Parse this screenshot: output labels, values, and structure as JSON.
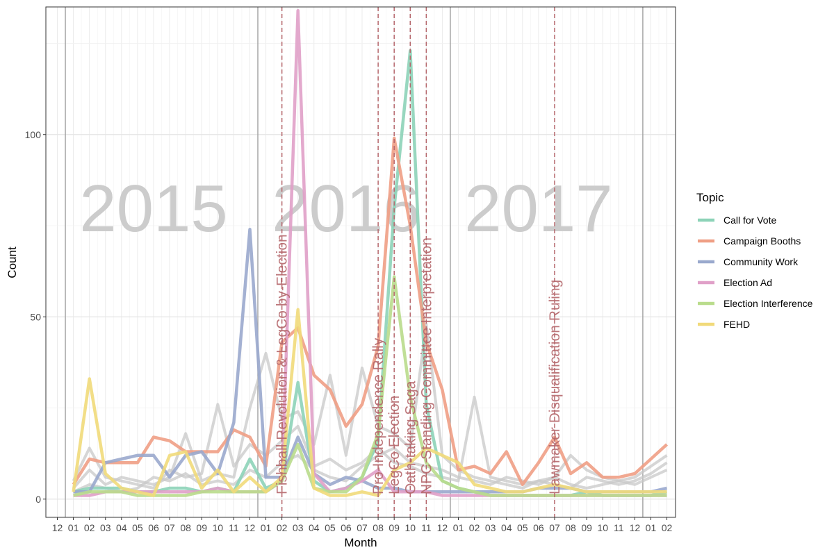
{
  "chart_data": {
    "type": "line",
    "xlabel": "Month",
    "ylabel": "Count",
    "ylim": [
      -5,
      135
    ],
    "y_ticks": [
      0,
      50,
      100
    ],
    "grid": true,
    "x_months": [
      "2014-12",
      "2015-01",
      "2015-02",
      "2015-03",
      "2015-04",
      "2015-05",
      "2015-06",
      "2015-07",
      "2015-08",
      "2015-09",
      "2015-10",
      "2015-11",
      "2015-12",
      "2016-01",
      "2016-02",
      "2016-03",
      "2016-04",
      "2016-05",
      "2016-06",
      "2016-07",
      "2016-08",
      "2016-09",
      "2016-10",
      "2016-11",
      "2016-12",
      "2017-01",
      "2017-02",
      "2017-03",
      "2017-04",
      "2017-05",
      "2017-06",
      "2017-07",
      "2017-08",
      "2017-09",
      "2017-10",
      "2017-11",
      "2017-12",
      "2018-01",
      "2018-02"
    ],
    "x_tick_labels": [
      "12",
      "01",
      "02",
      "03",
      "04",
      "05",
      "06",
      "07",
      "08",
      "09",
      "10",
      "11",
      "12",
      "01",
      "02",
      "03",
      "04",
      "05",
      "06",
      "07",
      "08",
      "09",
      "10",
      "11",
      "12",
      "01",
      "02",
      "03",
      "04",
      "05",
      "06",
      "07",
      "08",
      "09",
      "10",
      "11",
      "12",
      "01",
      "02"
    ],
    "year_dividers": [
      "2015-01",
      "2016-01",
      "2017-01",
      "2018-01"
    ],
    "year_labels": [
      {
        "text": "2015",
        "month": "2015-06"
      },
      {
        "text": "2016",
        "month": "2016-06"
      },
      {
        "text": "2017",
        "month": "2017-06"
      }
    ],
    "events": [
      {
        "month": "2016-02",
        "label": "Fishball Revolution & LegCo by-Election"
      },
      {
        "month": "2016-08",
        "label": "Pro-Independence Rally"
      },
      {
        "month": "2016-09",
        "label": "LegCo Election"
      },
      {
        "month": "2016-10",
        "label": "Oath-taking Saga"
      },
      {
        "month": "2016-11",
        "label": "NPC Standing Committee Interpretation"
      },
      {
        "month": "2017-07",
        "label": "Lawmaker Disqualification Ruling"
      }
    ],
    "legend": {
      "title": "Topic",
      "position": "right"
    },
    "series": [
      {
        "name": "Call for Vote",
        "color": "#8dd3b8",
        "start": "2015-01",
        "values": [
          2,
          3,
          3,
          3,
          2,
          2,
          3,
          3,
          2,
          3,
          2,
          11,
          3,
          5,
          32,
          5,
          2,
          3,
          6,
          16,
          80,
          123,
          26,
          5,
          3,
          2,
          1,
          1,
          1,
          1,
          1,
          1,
          2,
          1,
          1,
          1,
          1,
          2
        ]
      },
      {
        "name": "Campaign Booths",
        "color": "#ef9f85",
        "start": "2015-01",
        "values": [
          4,
          11,
          10,
          10,
          10,
          17,
          16,
          13,
          13,
          13,
          19,
          17,
          9,
          43,
          47,
          34,
          30,
          20,
          26,
          42,
          99,
          75,
          43,
          30,
          8,
          9,
          7,
          13,
          4,
          10,
          17,
          7,
          10,
          6,
          6,
          7,
          11,
          15
        ]
      },
      {
        "name": "Community Work",
        "color": "#9aa9cd",
        "start": "2015-01",
        "values": [
          2,
          2,
          10,
          11,
          12,
          12,
          6,
          12,
          13,
          7,
          21,
          74,
          6,
          6,
          17,
          7,
          4,
          6,
          5,
          3,
          3,
          2,
          2,
          2,
          2,
          2,
          2,
          2,
          2,
          3,
          3,
          3,
          2,
          2,
          2,
          2,
          2,
          3
        ]
      },
      {
        "name": "Election Ad",
        "color": "#e0a0c8",
        "start": "2015-01",
        "values": [
          1,
          1,
          2,
          2,
          2,
          2,
          2,
          2,
          2,
          3,
          2,
          2,
          2,
          5,
          134,
          7,
          2,
          3,
          5,
          8,
          2,
          2,
          2,
          1,
          1,
          1,
          1,
          1,
          1,
          1,
          1,
          1,
          1,
          1,
          1,
          1,
          1,
          1
        ]
      },
      {
        "name": "Election Interference",
        "color": "#b9dc8c",
        "start": "2015-01",
        "values": [
          1,
          2,
          2,
          2,
          1,
          1,
          1,
          1,
          2,
          2,
          2,
          2,
          2,
          5,
          15,
          3,
          2,
          2,
          6,
          18,
          61,
          28,
          10,
          5,
          3,
          2,
          1,
          1,
          1,
          1,
          1,
          1,
          1,
          1,
          1,
          1,
          1,
          1
        ]
      },
      {
        "name": "FEHD",
        "color": "#f1da7a",
        "start": "2015-01",
        "values": [
          2,
          33,
          7,
          3,
          2,
          1,
          12,
          13,
          3,
          8,
          2,
          6,
          2,
          6,
          52,
          3,
          1,
          1,
          2,
          1,
          8,
          10,
          14,
          12,
          10,
          4,
          3,
          2,
          2,
          3,
          4,
          3,
          2,
          2,
          2,
          2,
          2,
          2
        ]
      }
    ],
    "background_series": {
      "color": "#c8c8c8",
      "start": "2015-01",
      "values": [
        [
          5,
          14,
          6,
          5,
          4,
          3,
          8,
          6,
          7,
          26,
          9,
          15,
          12,
          16,
          20,
          9,
          11,
          8,
          10,
          14,
          10,
          9,
          7,
          6,
          5,
          28,
          6,
          5,
          4,
          5,
          6,
          4,
          3,
          4,
          5,
          4,
          6,
          8
        ],
        [
          3,
          8,
          4,
          6,
          5,
          4,
          6,
          18,
          5,
          7,
          6,
          25,
          40,
          22,
          24,
          15,
          34,
          12,
          36,
          20,
          18,
          14,
          48,
          12,
          8,
          6,
          5,
          4,
          3,
          5,
          4,
          3,
          6,
          5,
          4,
          5,
          7,
          10
        ],
        [
          2,
          4,
          3,
          2,
          3,
          6,
          5,
          7,
          4,
          5,
          4,
          8,
          6,
          10,
          12,
          8,
          6,
          5,
          9,
          12,
          14,
          10,
          9,
          8,
          6,
          5,
          4,
          6,
          5,
          4,
          6,
          12,
          8,
          6,
          5,
          6,
          9,
          12
        ]
      ]
    }
  }
}
